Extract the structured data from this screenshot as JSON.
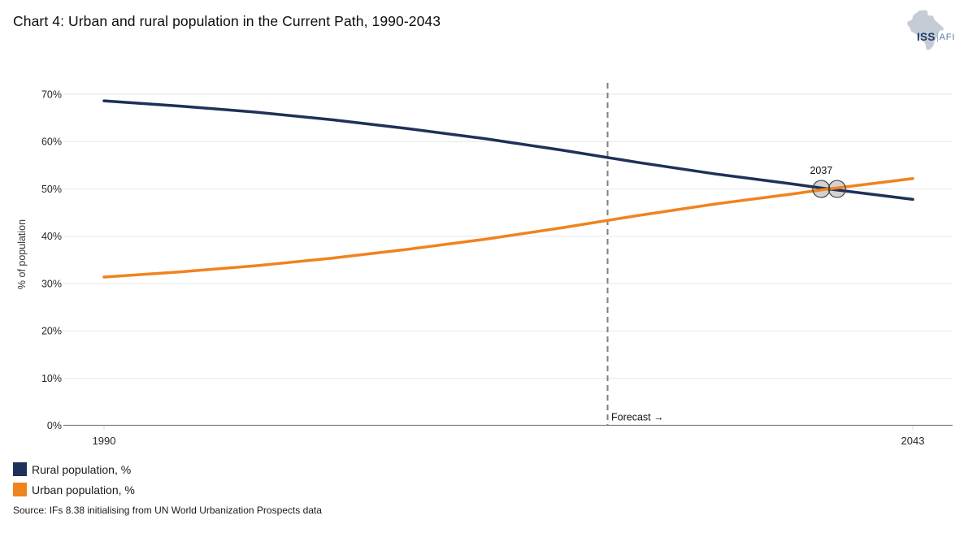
{
  "title": "Chart 4: Urban and rural population in the Current Path, 1990-2043",
  "logo": {
    "org": "ISS",
    "program": "AFI"
  },
  "source": "Source: IFs 8.38 initialising from UN World Urbanization Prospects data",
  "colors": {
    "rural": "#1f3158",
    "urban": "#f0831e",
    "gridline": "#e6e6e6",
    "axis": "#808080",
    "forecast_line": "#7f7f7f",
    "marker_fill": "#d2d2d2",
    "marker_stroke": "#404040",
    "logo_africa": "#c5ccd6",
    "logo_iss": "#1f3864",
    "logo_afi": "#5b7ca3",
    "logo_divider": "#9fb3c8"
  },
  "chart_data": {
    "type": "line",
    "title": "Urban and rural population in the Current Path, 1990-2043",
    "ylabel": "% of population",
    "ylim": [
      0,
      70
    ],
    "x_range": [
      1990,
      2043
    ],
    "grid": true,
    "legend_position": "bottom-left",
    "yticks": [
      "0%",
      "10%",
      "20%",
      "30%",
      "40%",
      "50%",
      "60%",
      "70%"
    ],
    "xticks": [
      "1990",
      "2043"
    ],
    "forecast_year": 2023,
    "forecast_label": "Forecast →",
    "crossover": {
      "label": "2037",
      "year": 2037,
      "value_pct": 50
    },
    "x": [
      1990,
      1995,
      2000,
      2005,
      2010,
      2015,
      2020,
      2025,
      2030,
      2035,
      2037,
      2040,
      2043
    ],
    "series": [
      {
        "name": "Rural population, %",
        "color": "#1f3158",
        "values": [
          68.6,
          67.5,
          66.2,
          64.6,
          62.7,
          60.6,
          58.2,
          55.6,
          53.2,
          51.1,
          50.2,
          49.0,
          47.8
        ]
      },
      {
        "name": "Urban population, %",
        "color": "#f0831e",
        "values": [
          31.4,
          32.5,
          33.8,
          35.4,
          37.3,
          39.4,
          41.8,
          44.4,
          46.8,
          48.9,
          49.8,
          51.0,
          52.2
        ]
      }
    ]
  }
}
